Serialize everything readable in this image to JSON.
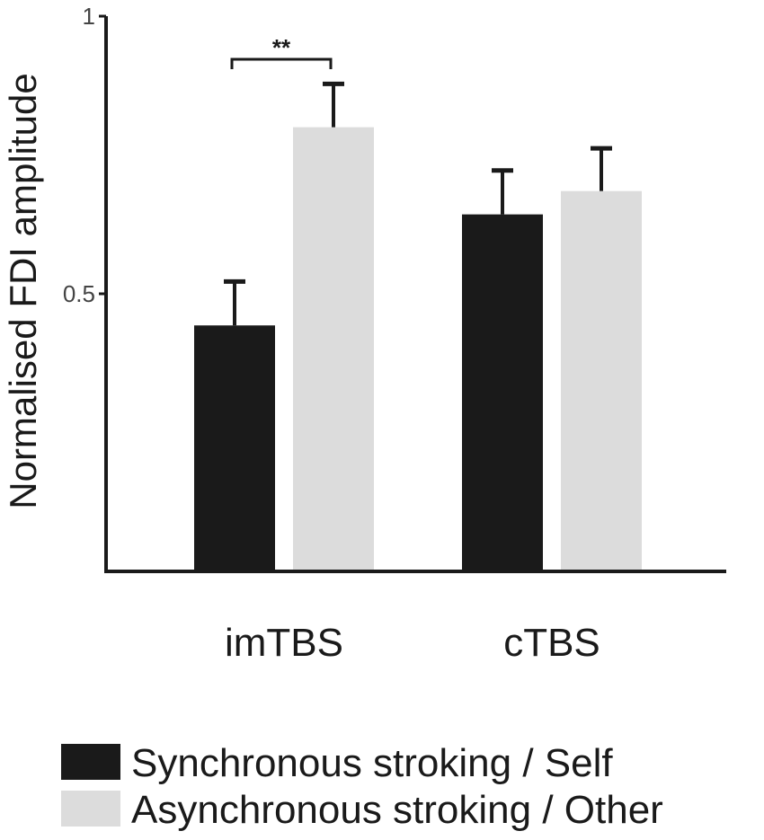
{
  "chart_data": {
    "type": "bar",
    "ylabel": "Normalised FDI amplitude",
    "ylim": [
      0,
      1
    ],
    "yticks": [
      {
        "value": 0.5,
        "label": "0.5"
      },
      {
        "value": 1,
        "label": "1"
      }
    ],
    "categories": [
      "imTBS",
      "cTBS"
    ],
    "series": [
      {
        "name": "Synchronous stroking / Self",
        "color": "#1a1a1a",
        "values": [
          0.443,
          0.643
        ],
        "errors": [
          0.079,
          0.079
        ]
      },
      {
        "name": "Asynchronous stroking / Other",
        "color": "#dcdcdc",
        "values": [
          0.8,
          0.685
        ],
        "errors": [
          0.078,
          0.077
        ]
      }
    ],
    "significance": [
      {
        "category": "imTBS",
        "label": "**"
      }
    ],
    "legend": "bottom-left",
    "grid": false
  }
}
